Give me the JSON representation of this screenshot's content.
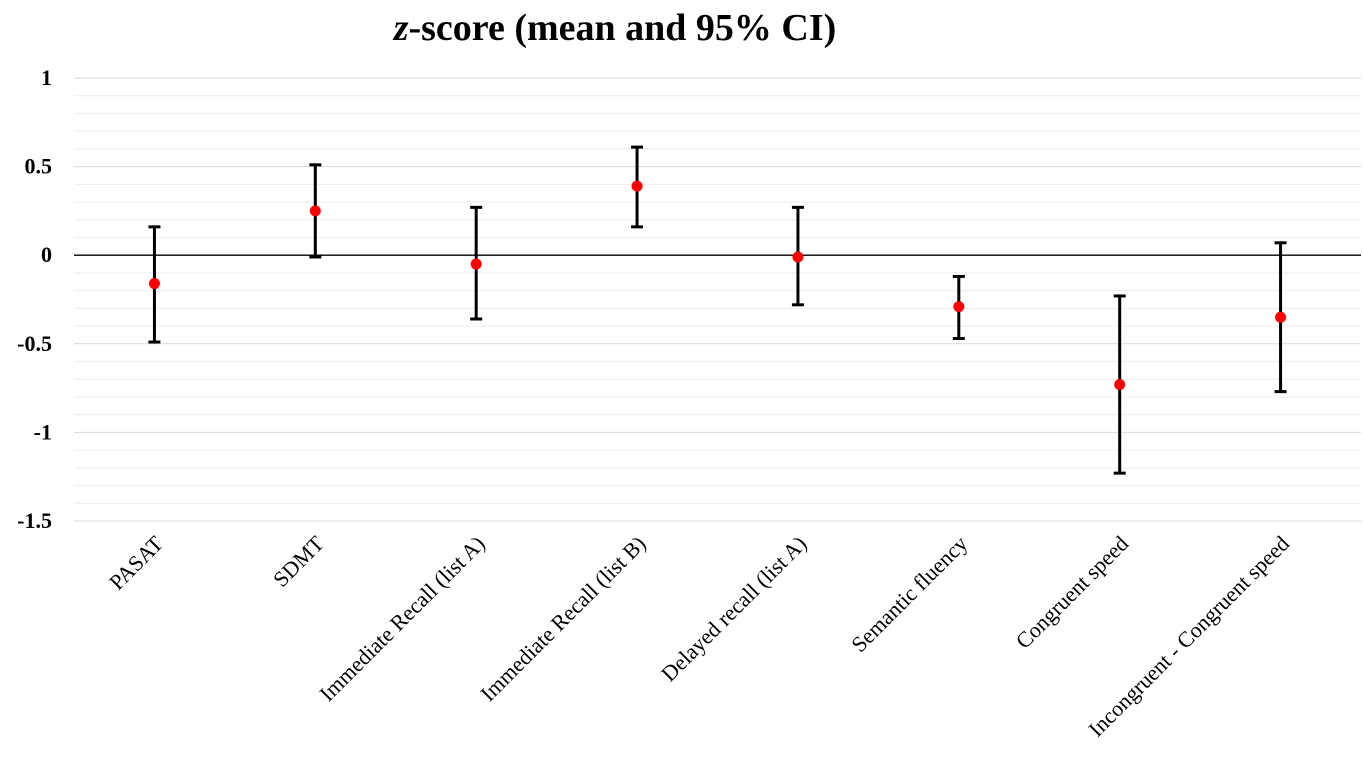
{
  "chart_data": {
    "type": "scatter",
    "title_italic": "z",
    "title_rest": "-score (mean and 95% CI)",
    "xlabel": "",
    "ylabel": "",
    "ylim": [
      -1.5,
      1
    ],
    "yticks": [
      1,
      0.5,
      0,
      -0.5,
      -1,
      -1.5
    ],
    "ytick_labels": [
      "1",
      "0.5",
      "0",
      "-0.5",
      "-1",
      "-1.5"
    ],
    "minor_grid_step": 0.1,
    "grid": true,
    "legend": "none",
    "categories": [
      "PASAT",
      "SDMT",
      "Immediate Recall (list A)",
      "Immediate Recall (list B)",
      "Delayed recall (list A)",
      "Semantic fluency",
      "Congruent speed",
      "Incongruent - Congruent speed"
    ],
    "series": [
      {
        "values": [
          -0.16,
          0.25,
          -0.05,
          0.39,
          -0.01,
          -0.29,
          -0.73,
          -0.35
        ],
        "ci_low": [
          -0.49,
          -0.01,
          -0.36,
          0.16,
          -0.28,
          -0.47,
          -1.23,
          -0.77
        ],
        "ci_high": [
          0.16,
          0.51,
          0.27,
          0.61,
          0.27,
          -0.12,
          -0.23,
          0.07
        ],
        "marker_color": "#ff0000",
        "errorbar_color": "#000000"
      }
    ]
  }
}
